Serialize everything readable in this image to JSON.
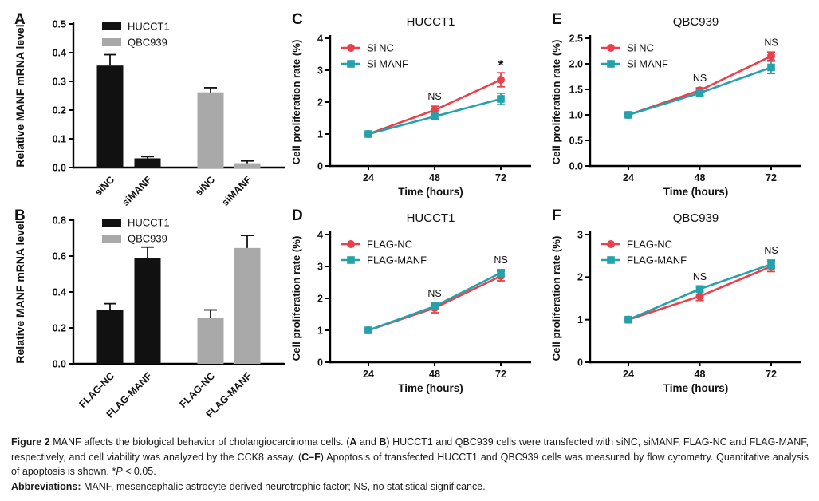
{
  "figure": {
    "caption": {
      "main_segments": [
        {
          "text": "Figure 2",
          "bold": true
        },
        {
          "text": " MANF affects the biological behavior of cholangiocarcinoma cells. ("
        },
        {
          "text": "A",
          "bold": true
        },
        {
          "text": " and "
        },
        {
          "text": "B",
          "bold": true
        },
        {
          "text": ") HUCCT1 and QBC939 cells were transfected with siNC, siMANF, FLAG-NC and FLAG-MANF, respectively, and cell viability was analyzed by the CCK8 assay. ("
        },
        {
          "text": "C–F",
          "bold": true
        },
        {
          "text": ") Apoptosis of transfected HUCCT1 and QBC939 cells was measured by flow cytometry. Quantitative analysis of apoptosis is shown. *"
        },
        {
          "text": "P",
          "italic": true
        },
        {
          "text": " < 0.05."
        }
      ],
      "abbrev_segments": [
        {
          "text": "Abbreviations:",
          "bold": true
        },
        {
          "text": " MANF, mesencephalic astrocyte-derived neurotrophic factor; NS, no statistical significance."
        }
      ]
    }
  },
  "colors": {
    "red": "#E8414C",
    "teal": "#24A2AB",
    "black_bar": "#111111",
    "gray_bar": "#A9A9A9",
    "axis": "#000000",
    "text": "#111111"
  },
  "chart_data": [
    {
      "panel": "A",
      "type": "bar",
      "ylabel": "Relative MANF mRNA level",
      "ylim": [
        0,
        0.5
      ],
      "yticks": [
        0,
        0.1,
        0.2,
        0.3,
        0.4,
        0.5
      ],
      "ytick_decimals": 1,
      "legend": [
        {
          "label": "HUCCT1",
          "color": "#111111"
        },
        {
          "label": "QBC939",
          "color": "#A9A9A9"
        }
      ],
      "bars": [
        {
          "category": "siNC",
          "group": "HUCCT1",
          "value": 0.355,
          "err": 0.038
        },
        {
          "category": "siMANF",
          "group": "HUCCT1",
          "value": 0.032,
          "err": 0.006
        },
        {
          "category": "siNC",
          "group": "QBC939",
          "value": 0.262,
          "err": 0.016
        },
        {
          "category": "siMANF",
          "group": "QBC939",
          "value": 0.015,
          "err": 0.008
        }
      ]
    },
    {
      "panel": "B",
      "type": "bar",
      "ylabel": "Relative MANF mRNA level",
      "ylim": [
        0,
        0.8
      ],
      "yticks": [
        0,
        0.2,
        0.4,
        0.6,
        0.8
      ],
      "ytick_decimals": 1,
      "legend": [
        {
          "label": "HUCCT1",
          "color": "#111111"
        },
        {
          "label": "QBC939",
          "color": "#A9A9A9"
        }
      ],
      "bars": [
        {
          "category": "FLAG-NC",
          "group": "HUCCT1",
          "value": 0.3,
          "err": 0.035
        },
        {
          "category": "FLAG-MANF",
          "group": "HUCCT1",
          "value": 0.59,
          "err": 0.06
        },
        {
          "category": "FLAG-NC",
          "group": "QBC939",
          "value": 0.255,
          "err": 0.045
        },
        {
          "category": "FLAG-MANF",
          "group": "QBC939",
          "value": 0.645,
          "err": 0.07
        }
      ]
    },
    {
      "panel": "C",
      "type": "line",
      "title": "HUCCT1",
      "xlabel": "Time (hours)",
      "ylabel": "Cell proliferation rate (%)",
      "x": [
        24,
        48,
        72
      ],
      "ylim": [
        0,
        4
      ],
      "yticks": [
        0,
        1,
        2,
        3,
        4
      ],
      "ytick_decimals": 0,
      "series": [
        {
          "name": "Si NC",
          "color": "#E8414C",
          "marker": "circle",
          "values": [
            1.0,
            1.75,
            2.7
          ],
          "errors": [
            0.05,
            0.12,
            0.22
          ]
        },
        {
          "name": "Si MANF",
          "color": "#24A2AB",
          "marker": "square",
          "values": [
            1.0,
            1.55,
            2.1
          ],
          "errors": [
            0.05,
            0.08,
            0.18
          ]
        }
      ],
      "annotations": [
        {
          "x": 48,
          "text": "NS"
        },
        {
          "x": 72,
          "text": "*"
        }
      ]
    },
    {
      "panel": "D",
      "type": "line",
      "title": "HUCCT1",
      "xlabel": "Time (hours)",
      "ylabel": "Cell proliferation rate (%)",
      "x": [
        24,
        48,
        72
      ],
      "ylim": [
        0,
        4
      ],
      "yticks": [
        0,
        1,
        2,
        3,
        4
      ],
      "ytick_decimals": 0,
      "series": [
        {
          "name": "FLAG-NC",
          "color": "#E8414C",
          "marker": "circle",
          "values": [
            1.0,
            1.7,
            2.7
          ],
          "errors": [
            0.05,
            0.15,
            0.15
          ]
        },
        {
          "name": "FLAG-MANF",
          "color": "#24A2AB",
          "marker": "square",
          "values": [
            1.0,
            1.75,
            2.8
          ],
          "errors": [
            0.05,
            0.1,
            0.1
          ]
        }
      ],
      "annotations": [
        {
          "x": 48,
          "text": "NS"
        },
        {
          "x": 72,
          "text": "NS"
        }
      ]
    },
    {
      "panel": "E",
      "type": "line",
      "title": "QBC939",
      "xlabel": "Time (hours)",
      "ylabel": "Cell proliferation rate (%)",
      "x": [
        24,
        48,
        72
      ],
      "ylim": [
        0,
        2.5
      ],
      "yticks": [
        0,
        0.5,
        1,
        1.5,
        2,
        2.5
      ],
      "ytick_decimals": 1,
      "series": [
        {
          "name": "Si NC",
          "color": "#E8414C",
          "marker": "circle",
          "values": [
            1.0,
            1.48,
            2.15
          ],
          "errors": [
            0.03,
            0.05,
            0.08
          ]
        },
        {
          "name": "Si MANF",
          "color": "#24A2AB",
          "marker": "square",
          "values": [
            1.0,
            1.43,
            1.93
          ],
          "errors": [
            0.03,
            0.05,
            0.12
          ]
        }
      ],
      "annotations": [
        {
          "x": 48,
          "text": "NS"
        },
        {
          "x": 72,
          "text": "NS"
        }
      ]
    },
    {
      "panel": "F",
      "type": "line",
      "title": "QBC939",
      "xlabel": "Time (hours)",
      "ylabel": "Cell proliferation rate (%)",
      "x": [
        24,
        48,
        72
      ],
      "ylim": [
        0,
        3
      ],
      "yticks": [
        0,
        1,
        2,
        3
      ],
      "ytick_decimals": 0,
      "series": [
        {
          "name": "FLAG-NC",
          "color": "#E8414C",
          "marker": "circle",
          "values": [
            1.0,
            1.55,
            2.25
          ],
          "errors": [
            0.04,
            0.1,
            0.12
          ]
        },
        {
          "name": "FLAG-MANF",
          "color": "#24A2AB",
          "marker": "square",
          "values": [
            1.0,
            1.72,
            2.3
          ],
          "errors": [
            0.04,
            0.06,
            0.1
          ]
        }
      ],
      "annotations": [
        {
          "x": 48,
          "text": "NS"
        },
        {
          "x": 72,
          "text": "NS"
        }
      ]
    }
  ]
}
